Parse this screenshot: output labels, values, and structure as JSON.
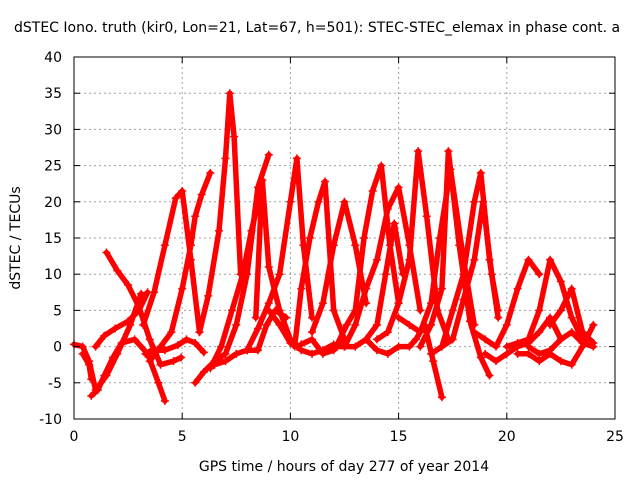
{
  "chart_data": {
    "type": "scatter",
    "title": "dSTEC Iono. truth (kir0, Lon=21, Lat=67, h=501): STEC-STEC_elemax in phase cont. a",
    "xlabel": "GPS time / hours of day 277 of year 2014",
    "ylabel": "dSTEC  / TECUs",
    "xlim": [
      0,
      25
    ],
    "ylim": [
      -10,
      40
    ],
    "x_ticks": [
      0,
      5,
      10,
      15,
      20,
      25
    ],
    "y_ticks": [
      -10,
      -5,
      0,
      5,
      10,
      15,
      20,
      25,
      30,
      35,
      40
    ],
    "grid": true,
    "marker": "plus",
    "color": "#ff0000",
    "series": [
      {
        "x": [
          0.0,
          0.4,
          0.7,
          1.0,
          1.5,
          2.0,
          2.6,
          3.1
        ],
        "y": [
          0.3,
          0.0,
          -2.0,
          -6.0,
          -4.0,
          -1.0,
          3.0,
          7.3
        ]
      },
      {
        "x": [
          0.4,
          0.7,
          0.8
        ],
        "y": [
          -1.0,
          -2.5,
          -4.5
        ]
      },
      {
        "x": [
          0.8,
          1.1,
          1.4,
          1.8,
          2.2,
          2.8,
          3.4,
          3.9,
          4.2
        ],
        "y": [
          -6.8,
          -6.0,
          -4.0,
          -1.5,
          0.5,
          1.0,
          -1.0,
          -5.0,
          -7.5
        ]
      },
      {
        "x": [
          1.5,
          2.0,
          2.5,
          3.0,
          3.5,
          4.0,
          4.6,
          4.95
        ],
        "y": [
          13.0,
          10.5,
          8.5,
          5.5,
          1.0,
          -2.5,
          -2.0,
          -1.5
        ]
      },
      {
        "x": [
          1.0,
          1.4,
          1.9,
          2.5,
          3.0,
          3.4
        ],
        "y": [
          0.0,
          1.5,
          2.5,
          3.5,
          5.0,
          7.5
        ]
      },
      {
        "x": [
          3.2,
          3.7,
          4.2,
          4.7,
          5.0,
          5.4,
          5.8
        ],
        "y": [
          3.0,
          7.5,
          14.0,
          20.5,
          21.5,
          12.0,
          2.0
        ]
      },
      {
        "x": [
          3.5,
          4.0,
          4.5,
          5.0,
          5.4,
          5.6,
          5.9,
          6.3
        ],
        "y": [
          -2.0,
          0.0,
          2.0,
          8.0,
          14.0,
          18.0,
          21.0,
          24.0
        ]
      },
      {
        "x": [
          3.3,
          3.6,
          4.2,
          4.8,
          5.2,
          5.6,
          6.0
        ],
        "y": [
          -1.0,
          -0.5,
          -0.5,
          0.2,
          1.0,
          0.5,
          -0.8
        ]
      },
      {
        "x": [
          5.6,
          6.0,
          6.5,
          7.0,
          7.5,
          8.0,
          8.5,
          9.0
        ],
        "y": [
          -5.0,
          -3.5,
          -2.0,
          -1.0,
          3.0,
          10.0,
          22.0,
          26.5
        ]
      },
      {
        "x": [
          5.8,
          6.2,
          6.7,
          7.0,
          7.2,
          7.4,
          7.7
        ],
        "y": [
          2.0,
          7.0,
          16.0,
          26.0,
          35.0,
          29.0,
          10.0
        ]
      },
      {
        "x": [
          6.3,
          6.8,
          7.3,
          7.8,
          8.2,
          8.6
        ],
        "y": [
          -3.0,
          0.0,
          5.0,
          10.0,
          16.0,
          21.0
        ]
      },
      {
        "x": [
          6.5,
          7.0,
          7.5,
          8.0,
          8.5,
          8.9,
          9.3,
          9.8
        ],
        "y": [
          -2.5,
          -2.0,
          -1.0,
          -0.5,
          -0.5,
          3.0,
          5.0,
          4.0
        ]
      },
      {
        "x": [
          8.4,
          8.7,
          9.0,
          9.5,
          10.0,
          10.5,
          11.0,
          11.5,
          12.0
        ],
        "y": [
          4.0,
          23.0,
          11.0,
          5.0,
          1.0,
          -0.5,
          -1.0,
          -0.5,
          0.3
        ]
      },
      {
        "x": [
          8.0,
          8.5,
          9.0,
          9.5,
          10.0,
          10.3,
          10.6,
          11.0
        ],
        "y": [
          -0.5,
          2.5,
          6.0,
          10.0,
          20.0,
          26.0,
          14.0,
          4.0
        ]
      },
      {
        "x": [
          9.0,
          9.5,
          10.0,
          10.3,
          10.5,
          11.0,
          11.5,
          12.0,
          12.5
        ],
        "y": [
          5.0,
          3.0,
          0.5,
          0.0,
          0.3,
          1.0,
          -1.0,
          -0.5,
          1.0
        ]
      },
      {
        "x": [
          10.2,
          10.5,
          10.9,
          11.3,
          11.6,
          12.0,
          12.5
        ],
        "y": [
          0.0,
          8.0,
          15.0,
          20.0,
          22.8,
          5.0,
          1.0
        ]
      },
      {
        "x": [
          11.0,
          11.5,
          12.0,
          12.5,
          13.0,
          13.5
        ],
        "y": [
          2.0,
          6.0,
          14.0,
          20.0,
          14.0,
          6.0
        ]
      },
      {
        "x": [
          12.2,
          12.6,
          13.0,
          13.4,
          13.8,
          14.2,
          14.6,
          15.0
        ],
        "y": [
          0.5,
          3.0,
          5.0,
          15.0,
          21.5,
          25.0,
          14.0,
          6.0
        ]
      },
      {
        "x": [
          12.5,
          13.0,
          13.5,
          14.0,
          14.5,
          15.0,
          15.5,
          16.0
        ],
        "y": [
          0.0,
          3.0,
          8.0,
          12.0,
          19.0,
          22.0,
          14.0,
          5.0
        ]
      },
      {
        "x": [
          12.0,
          12.5,
          13.0,
          13.5,
          14.0,
          14.4,
          14.8,
          15.2
        ],
        "y": [
          0.0,
          0.0,
          0.0,
          1.0,
          3.0,
          10.0,
          17.0,
          10.0
        ]
      },
      {
        "x": [
          13.5,
          14.0,
          14.5,
          15.0,
          15.5,
          15.8,
          16.2,
          16.6,
          17.0
        ],
        "y": [
          1.0,
          -0.5,
          -1.0,
          0.0,
          0.0,
          1.0,
          3.0,
          -2.0,
          -7.0
        ]
      },
      {
        "x": [
          14.0,
          14.5,
          15.0,
          15.5,
          15.9,
          16.3,
          16.8,
          17.3
        ],
        "y": [
          1.0,
          2.0,
          6.0,
          12.0,
          27.0,
          18.0,
          5.0,
          1.0
        ]
      },
      {
        "x": [
          15.0,
          15.5,
          16.0,
          16.5,
          16.9,
          17.4,
          18.0,
          18.5
        ],
        "y": [
          4.0,
          3.0,
          2.0,
          6.0,
          15.0,
          24.5,
          12.0,
          3.0
        ]
      },
      {
        "x": [
          16.0,
          16.5,
          17.0,
          17.3,
          17.8,
          18.3,
          18.8,
          19.2
        ],
        "y": [
          0.0,
          3.0,
          8.0,
          27.0,
          14.0,
          3.5,
          -1.5,
          -4.0
        ]
      },
      {
        "x": [
          16.5,
          17.0,
          17.5,
          18.0,
          18.5,
          18.8,
          19.2,
          19.6
        ],
        "y": [
          -1.0,
          0.0,
          5.0,
          10.0,
          20.0,
          24.0,
          12.0,
          4.0
        ]
      },
      {
        "x": [
          17.0,
          17.5,
          18.0,
          18.5,
          18.9,
          19.3,
          19.6
        ],
        "y": [
          0.0,
          1.0,
          6.5,
          12.0,
          20.0,
          10.0,
          5.0
        ]
      },
      {
        "x": [
          18.5,
          19.0,
          19.5,
          20.0,
          20.5,
          21.0,
          21.5
        ],
        "y": [
          2.0,
          1.0,
          0.0,
          3.0,
          8.0,
          12.0,
          10.0
        ]
      },
      {
        "x": [
          19.0,
          19.5,
          20.0,
          20.5,
          21.0,
          21.5,
          22.0,
          22.5
        ],
        "y": [
          -1.0,
          -2.0,
          -1.0,
          0.0,
          0.5,
          2.0,
          4.0,
          1.0
        ]
      },
      {
        "x": [
          20.0,
          20.5,
          21.0,
          21.5,
          22.0,
          22.5,
          23.0,
          23.5
        ],
        "y": [
          0.0,
          0.5,
          1.0,
          5.0,
          12.0,
          9.0,
          4.0,
          1.0
        ]
      },
      {
        "x": [
          20.5,
          21.0,
          21.5,
          22.0,
          22.5,
          23.0,
          23.5,
          24.0
        ],
        "y": [
          -1.0,
          -1.0,
          -2.0,
          -1.0,
          -2.0,
          -2.5,
          0.0,
          3.0
        ]
      },
      {
        "x": [
          21.0,
          21.5,
          22.0,
          22.5,
          23.0,
          23.5,
          24.0
        ],
        "y": [
          0.0,
          -1.0,
          -0.5,
          1.0,
          2.0,
          0.5,
          0.0
        ]
      },
      {
        "x": [
          22.0,
          22.5,
          23.0,
          23.5,
          24.0
        ],
        "y": [
          3.0,
          5.0,
          8.0,
          2.0,
          0.5
        ]
      }
    ]
  }
}
